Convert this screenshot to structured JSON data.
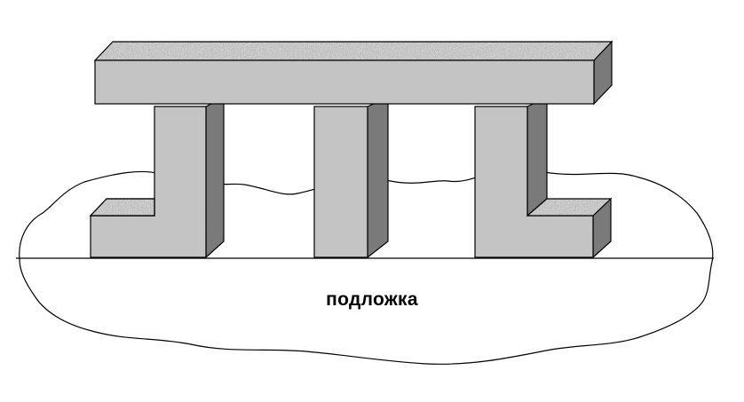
{
  "diagram": {
    "substrate_label": "подложка"
  },
  "colors": {
    "front_face": "#c4c4c4",
    "side_face": "#7a7a7a",
    "speckled_top_base": "#b8b8b8",
    "outline": "#000000",
    "background": "#ffffff"
  }
}
